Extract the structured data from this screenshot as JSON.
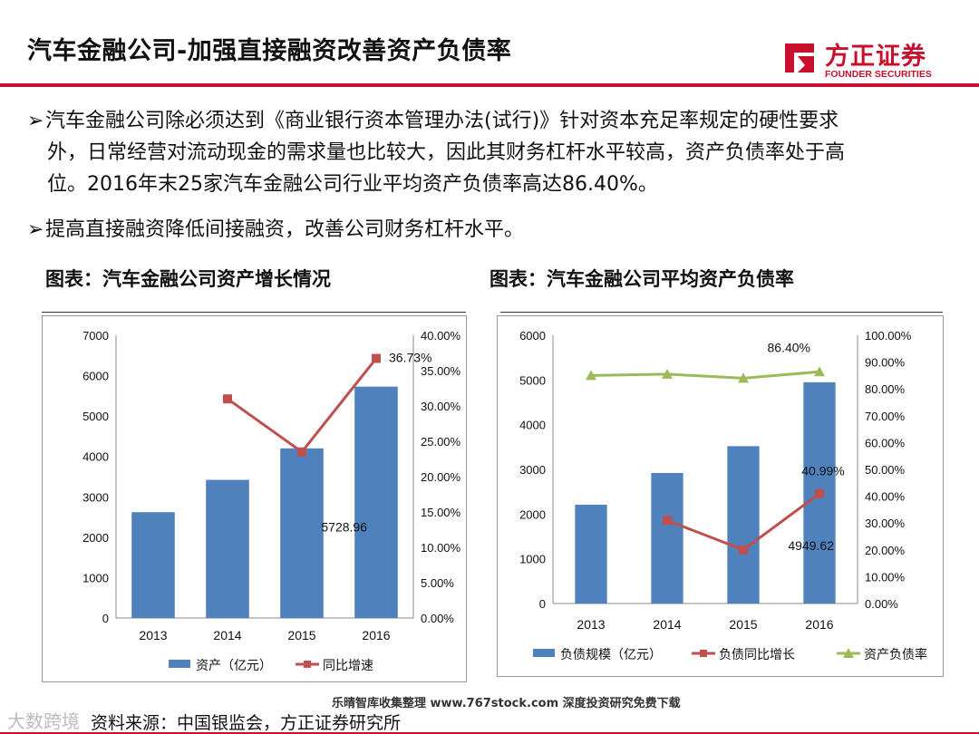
{
  "slide": {
    "title": "汽车金融公司-加强直接融资改善资产负债率",
    "logo_cn": "方正证券",
    "logo_en": "FOUNDER SECURITIES",
    "bullets": [
      {
        "arrow": "➢",
        "line1": "汽车金融公司除必须达到《商业银行资本管理办法(试行)》针对资本充足率规定的硬性要求",
        "line2": "外，日常经营对流动现金的需求量也比较大，因此其财务杠杆水平较高，资产负债率处于高",
        "line3": "位。2016年末25家汽车金融公司行业平均资产负债率高达86.40%。"
      },
      {
        "arrow": "➢",
        "line1": "提高直接融资降低间接融资，改善公司财务杠杆水平。"
      }
    ],
    "source": "资料来源：中国银监会，方正证券研究所",
    "watermark_left": "大数跨境",
    "watermark_banner": "乐晴智库收集整理 www.767stock.com 深度投资研究免费下载",
    "brand_color": "#c8102e"
  },
  "chart_data": [
    {
      "type": "bar",
      "caption": "图表：汽车金融公司资产增长情况",
      "categories": [
        "2013",
        "2014",
        "2015",
        "2016"
      ],
      "series": [
        {
          "name": "资产（亿元）",
          "type": "bar",
          "axis": "left",
          "color": "#4f81bd",
          "values": [
            2620,
            3420,
            4200,
            5728.96
          ]
        },
        {
          "name": "同比增速",
          "type": "line",
          "axis": "right",
          "color": "#c0504d",
          "values": [
            null,
            0.31,
            0.235,
            0.3673
          ]
        }
      ],
      "left_axis": {
        "min": 0,
        "max": 7000,
        "ticks": [
          "0",
          "1000",
          "2000",
          "3000",
          "4000",
          "5000",
          "6000",
          "7000"
        ]
      },
      "right_axis": {
        "min": 0,
        "max": 0.4,
        "ticks": [
          "0.00%",
          "5.00%",
          "10.00%",
          "15.00%",
          "20.00%",
          "25.00%",
          "30.00%",
          "35.00%",
          "40.00%"
        ]
      },
      "data_labels": [
        {
          "series": 0,
          "index": 3,
          "text": "5728.96"
        },
        {
          "series": 1,
          "index": 3,
          "text": "36.73%"
        }
      ]
    },
    {
      "type": "bar",
      "caption": "图表：汽车金融公司平均资产负债率",
      "categories": [
        "2013",
        "2014",
        "2015",
        "2016"
      ],
      "series": [
        {
          "name": "负债规模（亿元）",
          "type": "bar",
          "axis": "left",
          "color": "#4f81bd",
          "values": [
            2210,
            2920,
            3520,
            4949.62
          ]
        },
        {
          "name": "负债同比增长",
          "type": "line",
          "axis": "right",
          "color": "#c0504d",
          "values": [
            null,
            0.31,
            0.2,
            0.4099
          ]
        },
        {
          "name": "资产负债率",
          "type": "line",
          "axis": "right",
          "color": "#9bbb59",
          "values": [
            0.85,
            0.855,
            0.84,
            0.864
          ]
        }
      ],
      "left_axis": {
        "min": 0,
        "max": 6000,
        "ticks": [
          "0",
          "1000",
          "2000",
          "3000",
          "4000",
          "5000",
          "6000"
        ]
      },
      "right_axis": {
        "min": 0,
        "max": 1.0,
        "ticks": [
          "0.00%",
          "10.00%",
          "20.00%",
          "30.00%",
          "40.00%",
          "50.00%",
          "60.00%",
          "70.00%",
          "80.00%",
          "90.00%",
          "100.00%"
        ]
      },
      "data_labels": [
        {
          "series": 0,
          "index": 3,
          "text": "4949.62"
        },
        {
          "series": 1,
          "index": 3,
          "text": "40.99%"
        },
        {
          "series": 2,
          "index": 3,
          "text": "86.40%"
        }
      ]
    }
  ]
}
